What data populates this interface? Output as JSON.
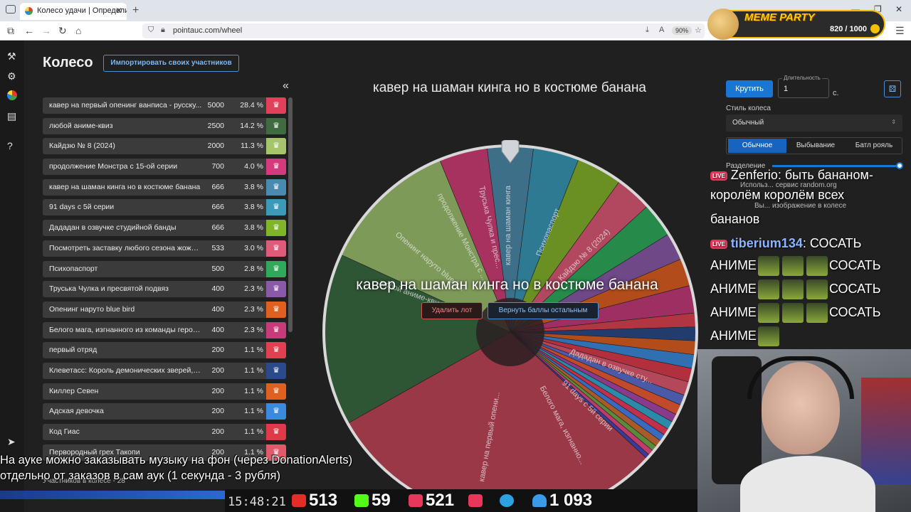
{
  "browser": {
    "tab_title": "Колесо удачи | Определите по",
    "url": "pointauc.com/wheel",
    "zoom": "90%"
  },
  "meme_party": {
    "title": "MEME PARTY",
    "count": "820 / 1000"
  },
  "page": {
    "title": "Колесо",
    "import_button": "Импортировать своих участников",
    "collapse_icon": "«",
    "participants_label": "Участников в колесе - 28"
  },
  "lots": [
    {
      "name": "кавер на первый опенинг ванписа - русску...",
      "amount": "5000",
      "pct": "28.4 %",
      "color": "#e0405a"
    },
    {
      "name": "любой аниме-квиз",
      "amount": "2500",
      "pct": "14.2 %",
      "color": "#3f6b3f"
    },
    {
      "name": "Кайдзю № 8 (2024)",
      "amount": "2000",
      "pct": "11.3 %",
      "color": "#a6c46a"
    },
    {
      "name": "продолжение Монстра с 15-ой серии",
      "amount": "700",
      "pct": "4.0 %",
      "color": "#d63a7e"
    },
    {
      "name": "кавер на шаман кинга но в костюме банана",
      "amount": "666",
      "pct": "3.8 %",
      "color": "#4a8ab0"
    },
    {
      "name": "91 days с 5й серии",
      "amount": "666",
      "pct": "3.8 %",
      "color": "#3a9ab8"
    },
    {
      "name": "Дададан в озвучке студийной банды",
      "amount": "666",
      "pct": "3.8 %",
      "color": "#7fb526"
    },
    {
      "name": "Посмотреть заставку любого сезона жожи, ...",
      "amount": "533",
      "pct": "3.0 %",
      "color": "#e05a7a"
    },
    {
      "name": "Психопаспорт",
      "amount": "500",
      "pct": "2.8 %",
      "color": "#2eaa5a"
    },
    {
      "name": "Труська Чулка и пресвятой подвяз",
      "amount": "400",
      "pct": "2.3 %",
      "color": "#8a5aa8"
    },
    {
      "name": "Опенинг наруто blue bird",
      "amount": "400",
      "pct": "2.3 %",
      "color": "#e06020"
    },
    {
      "name": "Белого мага, изгнанного из команды героя, ...",
      "amount": "400",
      "pct": "2.3 %",
      "color": "#c83a7a"
    },
    {
      "name": "первый отряд",
      "amount": "200",
      "pct": "1.1 %",
      "color": "#e04050"
    },
    {
      "name": "Клеветасс: Король демонических зверей, м...",
      "amount": "200",
      "pct": "1.1 %",
      "color": "#2a4a8a"
    },
    {
      "name": "Киллер Севен",
      "amount": "200",
      "pct": "1.1 %",
      "color": "#e06020"
    },
    {
      "name": "Адская девочка",
      "amount": "200",
      "pct": "1.1 %",
      "color": "#3a8ae0"
    },
    {
      "name": "Код Гиас",
      "amount": "200",
      "pct": "1.1 %",
      "color": "#e03a4a"
    },
    {
      "name": "Первородный грех Такопи",
      "amount": "200",
      "pct": "1.1 %",
      "color": "#e05a6a"
    }
  ],
  "wheel": {
    "current_title": "кавер на шаман кинга но в костюме банана",
    "winner_text": "кавер на шаман кинга но в костюме банана",
    "delete_button": "Удалить лот",
    "return_button": "Вернуть баллы остальным",
    "segment_labels": [
      {
        "text": "кавер на первый опени..."
      },
      {
        "text": "любой аниме-квиз"
      },
      {
        "text": "Опенинг наруто blue b..."
      },
      {
        "text": "продолжение Монстра с ..."
      },
      {
        "text": "Труська Чулка и прес..."
      },
      {
        "text": "кавер на шаман кинга"
      },
      {
        "text": "Психопаспорт"
      },
      {
        "text": "Кайдзю № 8 (2024)"
      },
      {
        "text": "Дададан в озвучке сту..."
      },
      {
        "text": "91 days с 5й серии"
      },
      {
        "text": "Белого мага, изгнанно..."
      }
    ]
  },
  "controls": {
    "spin_button": "Крутить",
    "duration_label": "Длительность",
    "duration_value": "1",
    "duration_unit": "с.",
    "style_label": "Стиль колеса",
    "style_value": "Обычный",
    "modes": [
      "Обычное",
      "Выбывание",
      "Батл рояль"
    ],
    "split_label": "Разделение"
  },
  "chat": {
    "line1": "Zenferio: быть бананом-",
    "line1_gray": "Использ... сервис random.org",
    "line2": "королём  королём всех",
    "line2_gray": "Вы... изображение в колесе",
    "line3": "бананов",
    "user2": "tiberium134",
    "msg2": ": СОСАТЬ",
    "anime": "АНИМЕ",
    "sosat": "СОСАТЬ"
  },
  "stats": {
    "clock": "15:48:21",
    "youtube": "513",
    "kick": "59",
    "vklive": "521",
    "viewers": "1 093"
  },
  "subtitles": {
    "line1": "На ауке можно заказывать музыку на фон (через DonationAlerts)",
    "line2": "отдельно от заказов в сам аук (1 секунда - 3 рубля)"
  }
}
